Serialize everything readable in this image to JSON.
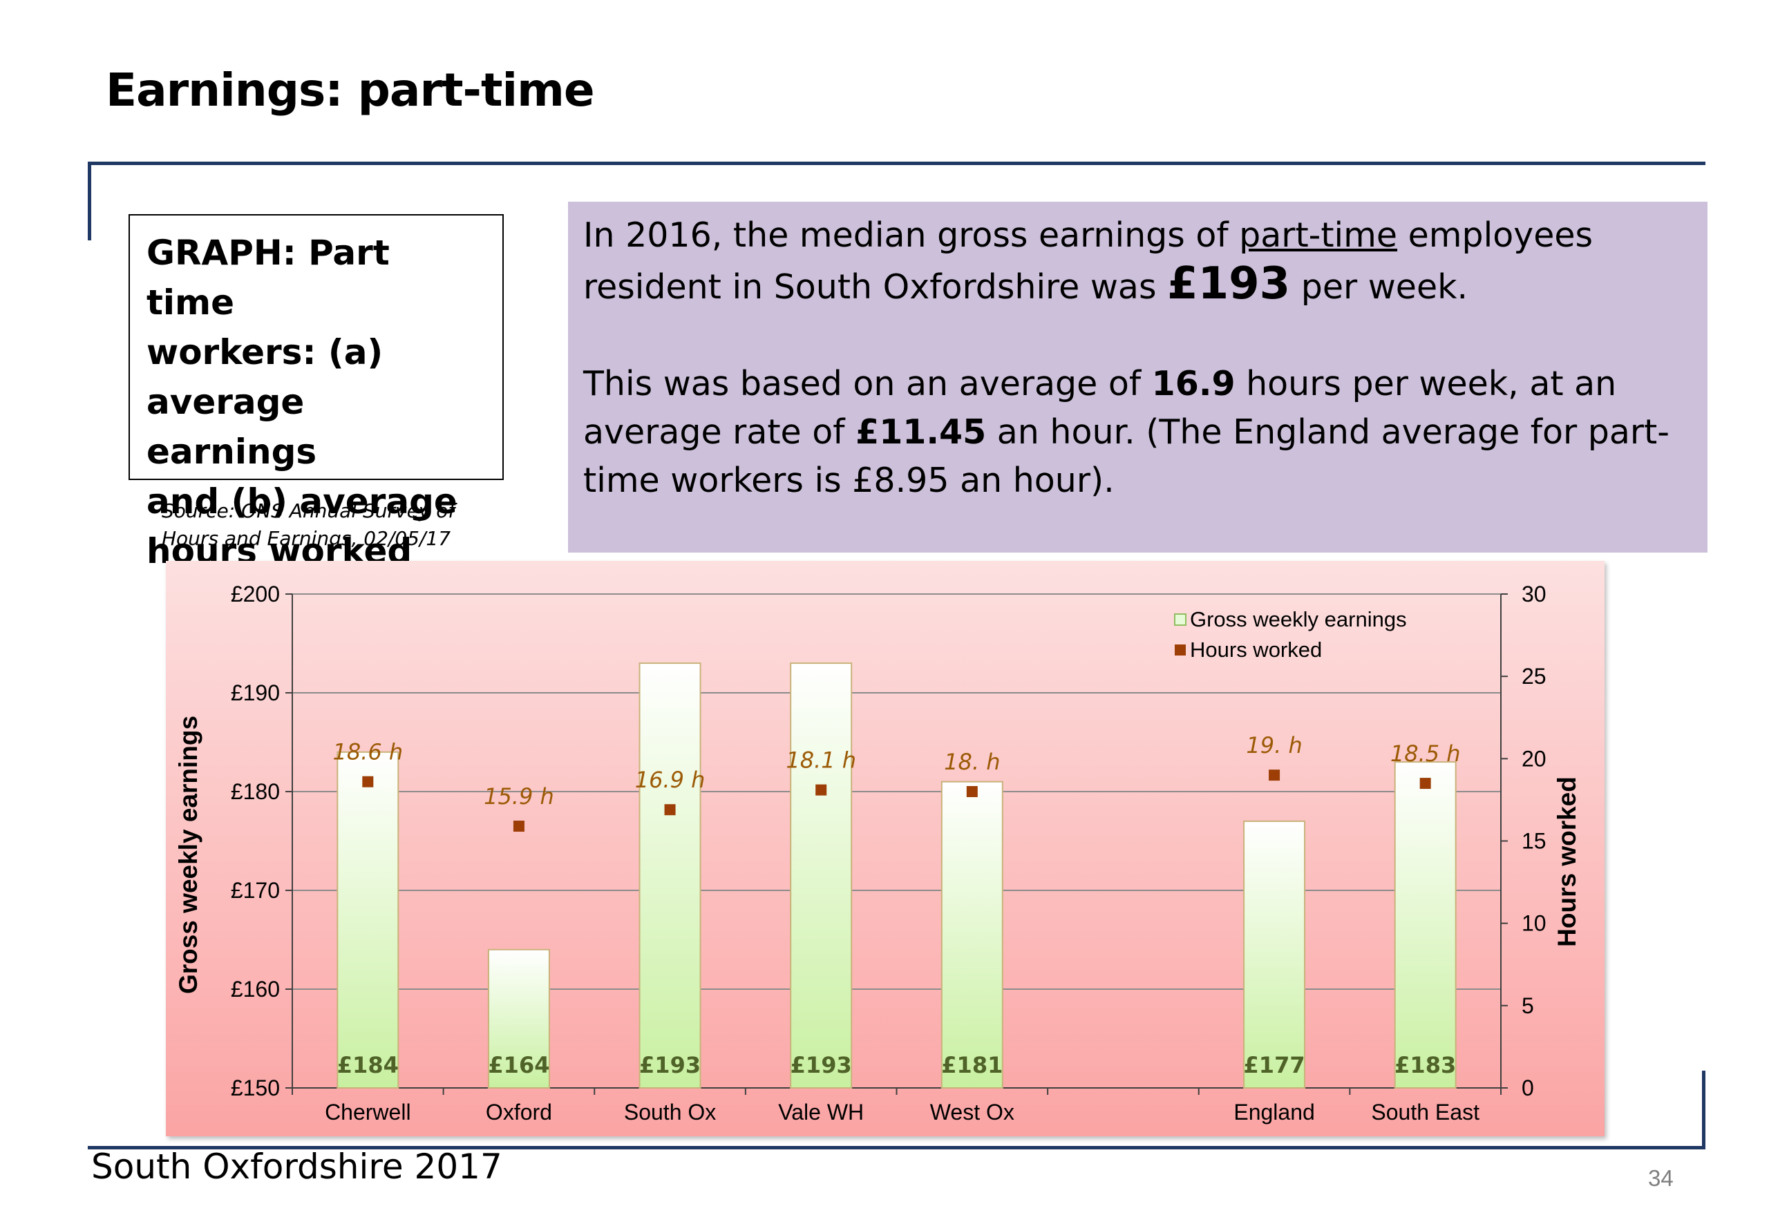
{
  "slide": {
    "title": "Earnings: part-time",
    "graph_box": {
      "lines": [
        "GRAPH: Part time",
        "workers: (a)",
        "average earnings",
        "and (b) average",
        "hours worked"
      ]
    },
    "source_lines": [
      "Source: ONS Annual Survey of",
      "Hours and Earnings, 02/05/17"
    ],
    "info": {
      "p1_a": "In 2016, the median gross earnings of ",
      "p1_u": "part-time",
      "p1_b": " employees resident in South Oxfordshire was ",
      "p1_value": "£193",
      "p1_c": " per week.",
      "p2_a": "This was based on an average of ",
      "p2_hours": "16.9",
      "p2_b": " hours per week, at an average rate of ",
      "p2_rate": "£11.45",
      "p2_c": " an hour.  (The England average for part-time workers is £8.95 an hour)."
    },
    "footer": "South Oxfordshire  2017",
    "page_number": "34"
  },
  "chart_data": {
    "type": "bar",
    "categories": [
      "Cherwell",
      "Oxford",
      "South Ox",
      "Vale WH",
      "West Ox",
      "",
      "England",
      "South East"
    ],
    "series": [
      {
        "name": "Gross weekly earnings",
        "type": "bar",
        "axis": "left",
        "values": [
          184,
          164,
          193,
          193,
          181,
          null,
          177,
          183
        ],
        "labels": [
          "£184",
          "£164",
          "£193",
          "£193",
          "£181",
          "",
          "£177",
          "£183"
        ]
      },
      {
        "name": "Hours worked",
        "type": "scatter",
        "axis": "right",
        "values": [
          18.6,
          15.9,
          16.9,
          18.1,
          18.0,
          null,
          19.0,
          18.5
        ],
        "labels": [
          "18.6 h",
          "15.9 h",
          "16.9 h",
          "18.1 h",
          "18. h",
          "",
          "19. h",
          "18.5 h"
        ]
      }
    ],
    "ylabel": "Gross weekly earnings",
    "y2label": "Hours worked",
    "ylim": [
      150,
      200
    ],
    "y2lim": [
      0,
      30
    ],
    "yticks": [
      "£150",
      "£160",
      "£170",
      "£180",
      "£190",
      "£200"
    ],
    "y2ticks": [
      "0",
      "5",
      "10",
      "15",
      "20",
      "25",
      "30"
    ],
    "grid": true,
    "legend_position": "top-right",
    "colors": {
      "bar_fill_top": "#ffffff",
      "bar_fill_bottom": "#c8f0a0",
      "bar_stroke": "#c9b27a",
      "bar_label": "#4f6228",
      "marker": "#9c3e06",
      "hours_label": "#9c5a06",
      "gridline": "#8c8c8c",
      "axis": "#404040"
    }
  }
}
